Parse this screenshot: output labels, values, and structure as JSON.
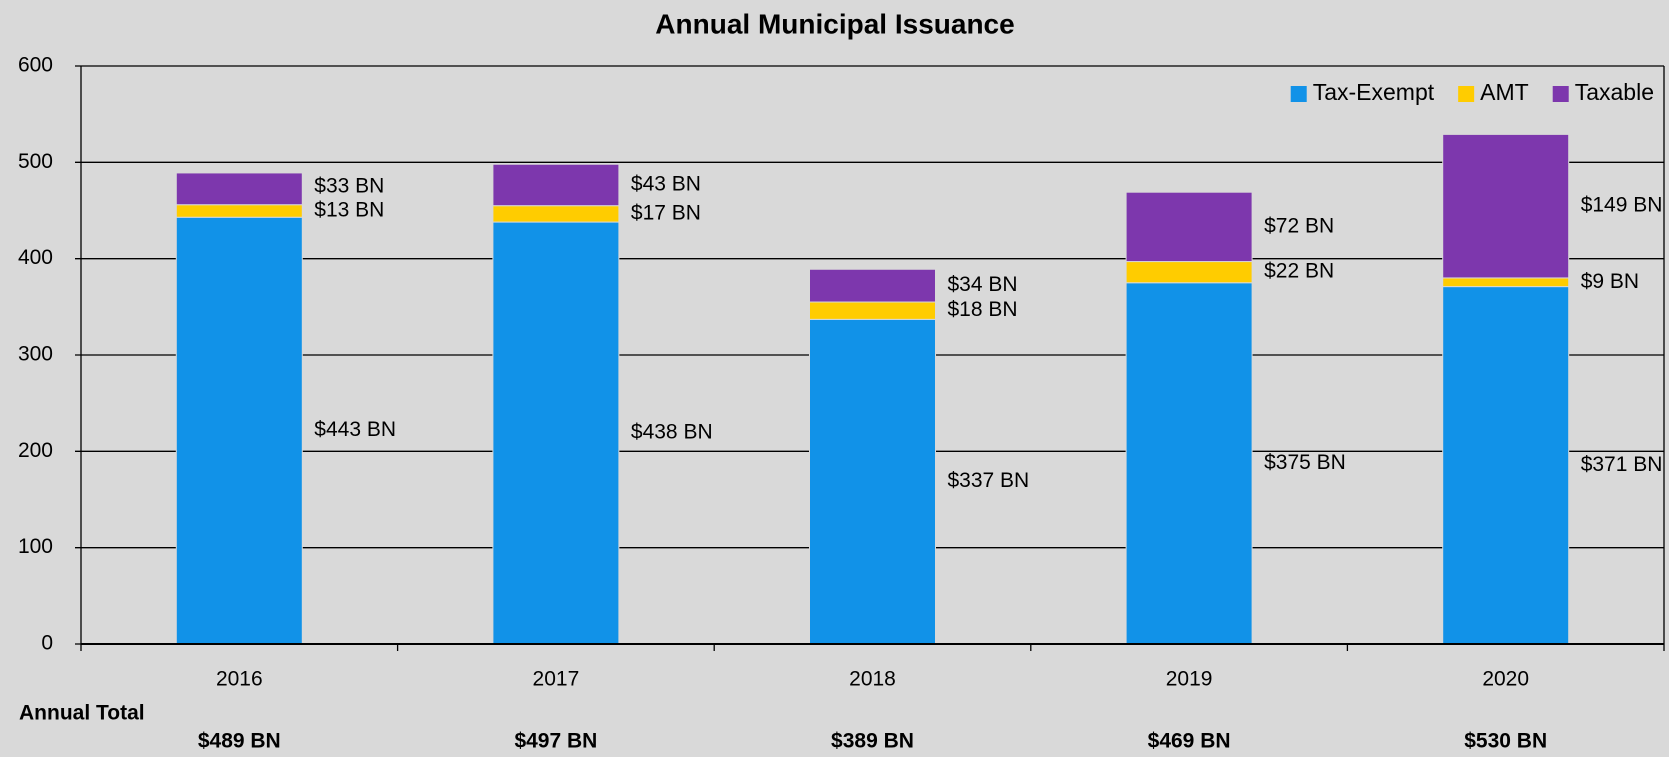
{
  "chart_data": {
    "type": "stacked_bar",
    "title": "Annual Municipal Issuance",
    "categories": [
      "2016",
      "2017",
      "2018",
      "2019",
      "2020"
    ],
    "series": [
      {
        "name": "Tax-Exempt",
        "color": "#1192e8",
        "values": [
          443,
          438,
          337,
          375,
          371
        ],
        "value_labels": [
          "$443 BN",
          "$438 BN",
          "$337 BN",
          "$375 BN",
          "$371 BN"
        ]
      },
      {
        "name": "AMT",
        "color": "#ffcc00",
        "values": [
          13,
          17,
          18,
          22,
          9
        ],
        "value_labels": [
          "$13 BN",
          "$17 BN",
          "$18 BN",
          "$22 BN",
          "$9 BN"
        ]
      },
      {
        "name": "Taxable",
        "color": "#7d37ad",
        "values": [
          33,
          43,
          34,
          72,
          149
        ],
        "value_labels": [
          "$33 BN",
          "$43 BN",
          "$34 BN",
          "$72 BN",
          "$149 BN"
        ]
      }
    ],
    "ylim": [
      0,
      600
    ],
    "yticks": [
      0,
      100,
      200,
      300,
      400,
      500,
      600
    ],
    "grid": true,
    "legend": "upper right",
    "annual_total_label": "Annual Total",
    "annual_totals": [
      "$489 BN",
      "$497 BN",
      "$389 BN",
      "$469 BN",
      "$530 BN"
    ]
  }
}
